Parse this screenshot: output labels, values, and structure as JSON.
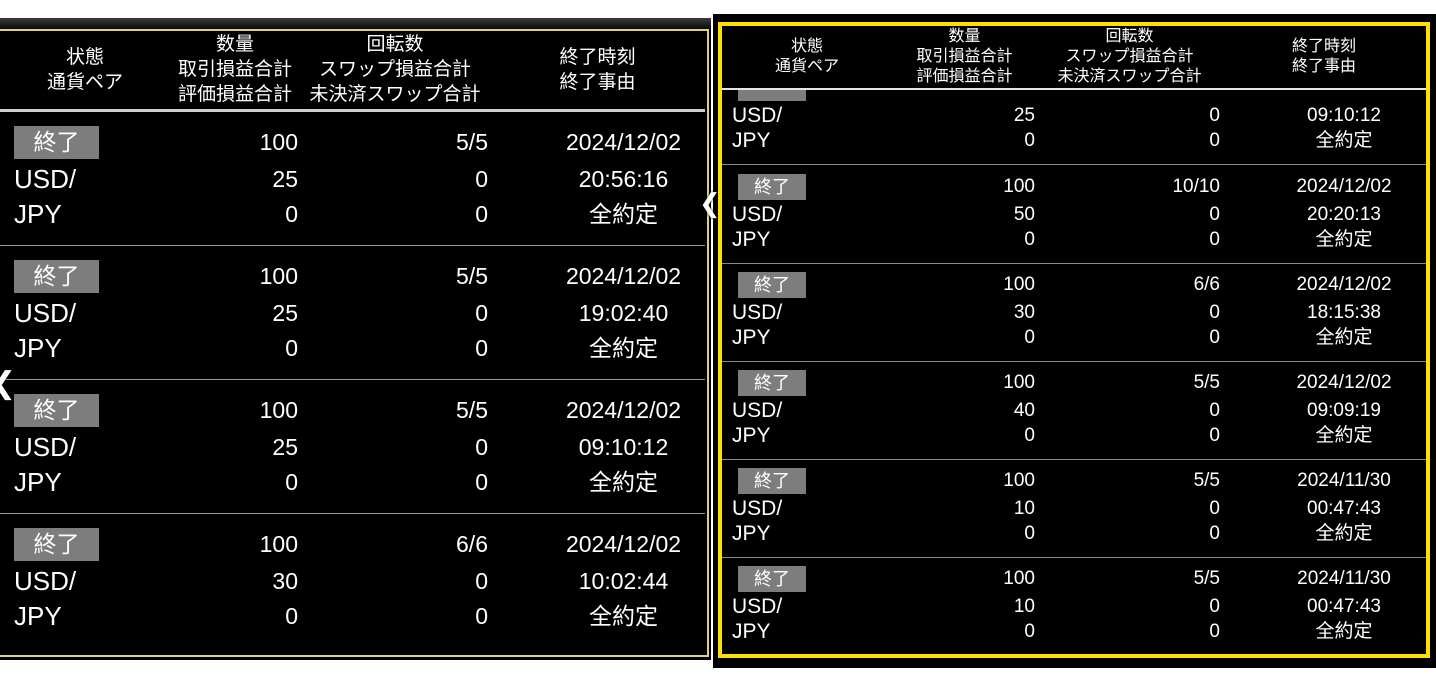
{
  "colors": {
    "page_bg": "#ffffff",
    "panel_bg": "#000000",
    "text": "#ffffff",
    "accent_yellow": "#ffdf00",
    "muted_yellow": "#dcd27a",
    "badge_gray": "#7d7d7d",
    "divider": "#9a9a9a"
  },
  "icons": {
    "chevron_left": "❮"
  },
  "header": {
    "col_status_line1": "状態",
    "col_status_line2": "通貨ペア",
    "col_qty_line1": "数量",
    "col_qty_line2": "取引損益合計",
    "col_qty_line3": "評価損益合計",
    "col_turns_line1": "回転数",
    "col_turns_line2": "スワップ損益合計",
    "col_turns_line3": "未決済スワップ合計",
    "col_end_line1": "終了時刻",
    "col_end_line2": "終了事由"
  },
  "left_panel": {
    "rows": [
      {
        "status": "終了",
        "pair1": "USD/",
        "pair2": "JPY",
        "qty": "100",
        "trade_pl": "25",
        "eval_pl": "0",
        "turns": "5/5",
        "swap_pl": "0",
        "open_swap": "0",
        "date": "2024/12/02",
        "time": "20:56:16",
        "reason": "全約定"
      },
      {
        "status": "終了",
        "pair1": "USD/",
        "pair2": "JPY",
        "qty": "100",
        "trade_pl": "25",
        "eval_pl": "0",
        "turns": "5/5",
        "swap_pl": "0",
        "open_swap": "0",
        "date": "2024/12/02",
        "time": "19:02:40",
        "reason": "全約定"
      },
      {
        "status": "終了",
        "pair1": "USD/",
        "pair2": "JPY",
        "qty": "100",
        "trade_pl": "25",
        "eval_pl": "0",
        "turns": "5/5",
        "swap_pl": "0",
        "open_swap": "0",
        "date": "2024/12/02",
        "time": "09:10:12",
        "reason": "全約定"
      },
      {
        "status": "終了",
        "pair1": "USD/",
        "pair2": "JPY",
        "qty": "100",
        "trade_pl": "30",
        "eval_pl": "0",
        "turns": "6/6",
        "swap_pl": "0",
        "open_swap": "0",
        "date": "2024/12/02",
        "time": "10:02:44",
        "reason": "全約定"
      }
    ]
  },
  "right_panel": {
    "partial_row": {
      "pair1": "USD/",
      "pair2": "JPY",
      "trade_pl": "25",
      "eval_pl": "0",
      "swap_pl": "0",
      "open_swap": "0",
      "time": "09:10:12",
      "reason": "全約定"
    },
    "rows": [
      {
        "status": "終了",
        "pair1": "USD/",
        "pair2": "JPY",
        "qty": "100",
        "trade_pl": "50",
        "eval_pl": "0",
        "turns": "10/10",
        "swap_pl": "0",
        "open_swap": "0",
        "date": "2024/12/02",
        "time": "20:20:13",
        "reason": "全約定"
      },
      {
        "status": "終了",
        "pair1": "USD/",
        "pair2": "JPY",
        "qty": "100",
        "trade_pl": "30",
        "eval_pl": "0",
        "turns": "6/6",
        "swap_pl": "0",
        "open_swap": "0",
        "date": "2024/12/02",
        "time": "18:15:38",
        "reason": "全約定"
      },
      {
        "status": "終了",
        "pair1": "USD/",
        "pair2": "JPY",
        "qty": "100",
        "trade_pl": "40",
        "eval_pl": "0",
        "turns": "5/5",
        "swap_pl": "0",
        "open_swap": "0",
        "date": "2024/12/02",
        "time": "09:09:19",
        "reason": "全約定"
      },
      {
        "status": "終了",
        "pair1": "USD/",
        "pair2": "JPY",
        "qty": "100",
        "trade_pl": "10",
        "eval_pl": "0",
        "turns": "5/5",
        "swap_pl": "0",
        "open_swap": "0",
        "date": "2024/11/30",
        "time": "00:47:43",
        "reason": "全約定"
      },
      {
        "status": "終了",
        "pair1": "USD/",
        "pair2": "JPY",
        "qty": "100",
        "trade_pl": "10",
        "eval_pl": "0",
        "turns": "5/5",
        "swap_pl": "0",
        "open_swap": "0",
        "date": "2024/11/30",
        "time": "00:47:43",
        "reason": "全約定"
      }
    ]
  }
}
